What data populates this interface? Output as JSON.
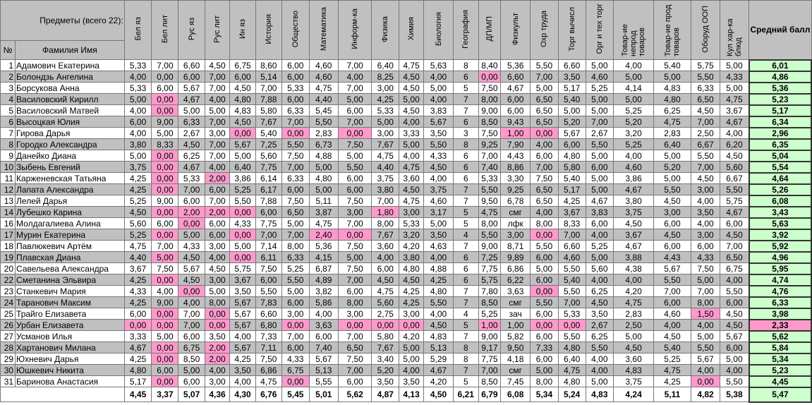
{
  "header": {
    "subjects_label": "Предметы (всего 22):",
    "num_label": "№",
    "fio_label": "Фамилия Имя",
    "avg_label": "Средний балл",
    "subjects": [
      "Бел яз",
      "Бел лит",
      "Рус яз",
      "Рус лит",
      "Ин яз",
      "История",
      "Общество",
      "Математика",
      "Информ-ка",
      "Физика",
      "Химия",
      "Биология",
      "География",
      "ДП/МП",
      "Физкульт",
      "Охр труда",
      "Торг вычисл",
      "Орг и тех торг",
      "Товар-ие непрод товаров",
      "Товар-ие прод товаров",
      "Оборуд ООП",
      "Кул хар-ка блюд"
    ]
  },
  "rows": [
    {
      "n": "1",
      "name": "Адамович Екатерина",
      "v": [
        "5,33",
        "7,00",
        "6,60",
        "4,50",
        "6,75",
        "8,60",
        "6,00",
        "4,60",
        "7,00",
        "6,40",
        "4,75",
        "5,63",
        "8",
        "8,40",
        "5,36",
        "5,50",
        "6,60",
        "5,00",
        "4,00",
        "5,40",
        "5,75",
        "5,00"
      ],
      "avg": "6,01"
    },
    {
      "n": "2",
      "name": "Болондзь Ангелина",
      "v": [
        "4,00",
        "0,00",
        "6,00",
        "7,00",
        "6,00",
        "5,14",
        "6,00",
        "4,60",
        "4,00",
        "8,25",
        "4,50",
        "4,00",
        "6",
        "0,00",
        "6,60",
        "7,00",
        "3,50",
        "4,60",
        "5,00",
        "5,00",
        "5,50",
        "4,33"
      ],
      "avg": "4,86"
    },
    {
      "n": "3",
      "name": "Борсукова Анна",
      "v": [
        "5,33",
        "6,00",
        "5,67",
        "7,00",
        "4,50",
        "7,00",
        "5,33",
        "4,75",
        "7,00",
        "3,00",
        "4,50",
        "5,00",
        "5",
        "7,50",
        "4,67",
        "5,00",
        "5,17",
        "5,25",
        "4,14",
        "4,83",
        "6,33",
        "5,00"
      ],
      "avg": "5,36"
    },
    {
      "n": "4",
      "name": "Василовский Кирилл",
      "v": [
        "5,00",
        "0,00",
        "4,67",
        "4,00",
        "4,80",
        "7,88",
        "6,00",
        "4,40",
        "5,00",
        "4,25",
        "5,00",
        "4,00",
        "7",
        "8,00",
        "6,00",
        "6,50",
        "5,40",
        "5,00",
        "5,00",
        "4,80",
        "6,50",
        "4,75"
      ],
      "avg": "5,23"
    },
    {
      "n": "5",
      "name": "Василовский Матвей",
      "v": [
        "4,00",
        "0,00",
        "5,00",
        "5,00",
        "4,83",
        "5,80",
        "6,33",
        "5,45",
        "6,00",
        "5,33",
        "4,50",
        "3,83",
        "7",
        "9,00",
        "6,00",
        "6,50",
        "5,00",
        "5,00",
        "5,25",
        "6,25",
        "4,50",
        "3,67"
      ],
      "avg": "5,17"
    },
    {
      "n": "6",
      "name": "Высоцкая Юлия",
      "v": [
        "6,00",
        "9,00",
        "6,33",
        "7,00",
        "4,50",
        "7,67",
        "7,00",
        "5,50",
        "7,00",
        "5,00",
        "4,00",
        "5,67",
        "6",
        "8,50",
        "9,43",
        "6,50",
        "5,20",
        "7,00",
        "5,20",
        "4,75",
        "7,00",
        "4,67"
      ],
      "avg": "6,34"
    },
    {
      "n": "7",
      "name": "Гирова Дарья",
      "v": [
        "4,00",
        "5,00",
        "2,67",
        "3,00",
        "0,00",
        "5,40",
        "0,00",
        "2,83",
        "0,00",
        "3,00",
        "3,33",
        "3,50",
        "3",
        "7,50",
        "1,00",
        "0,00",
        "5,67",
        "2,67",
        "3,20",
        "2,83",
        "2,50",
        "4,00"
      ],
      "avg": "2,96"
    },
    {
      "n": "8",
      "name": "Городко Александра",
      "v": [
        "3,80",
        "8,33",
        "4,50",
        "7,00",
        "5,67",
        "7,25",
        "5,50",
        "6,73",
        "7,50",
        "7,67",
        "5,00",
        "5,50",
        "8",
        "9,25",
        "7,90",
        "4,00",
        "6,00",
        "5,50",
        "5,25",
        "6,40",
        "6,67",
        "6,20"
      ],
      "avg": "6,35"
    },
    {
      "n": "9",
      "name": "Данейко Диана",
      "v": [
        "5,00",
        "0,00",
        "6,25",
        "7,00",
        "5,00",
        "5,60",
        "7,50",
        "4,88",
        "5,00",
        "4,75",
        "4,00",
        "4,33",
        "6",
        "7,00",
        "4,43",
        "6,00",
        "4,80",
        "5,00",
        "4,00",
        "5,00",
        "5,50",
        "4,50"
      ],
      "avg": "5,04"
    },
    {
      "n": "10",
      "name": "Зыбень Евгений",
      "v": [
        "3,75",
        "0,00",
        "4,67",
        "4,00",
        "6,40",
        "7,75",
        "7,00",
        "5,00",
        "5,50",
        "4,40",
        "4,75",
        "4,50",
        "6",
        "7,40",
        "8,86",
        "7,00",
        "5,80",
        "6,00",
        "4,60",
        "5,20",
        "7,00",
        "5,60"
      ],
      "avg": "5,54"
    },
    {
      "n": "11",
      "name": "Карженевская Татьяна",
      "v": [
        "4,25",
        "0,00",
        "5,33",
        "2,00",
        "3,86",
        "6,14",
        "6,33",
        "4,80",
        "6,00",
        "3,75",
        "3,60",
        "4,00",
        "6",
        "5,33",
        "3,30",
        "7,50",
        "5,40",
        "5,00",
        "3,86",
        "5,00",
        "4,50",
        "6,67"
      ],
      "avg": "4,64"
    },
    {
      "n": "12",
      "name": "Лапата Александра",
      "v": [
        "4,25",
        "0,00",
        "7,00",
        "6,00",
        "5,25",
        "6,17",
        "6,00",
        "5,00",
        "6,00",
        "3,80",
        "4,50",
        "3,75",
        "7",
        "5,50",
        "9,25",
        "6,50",
        "5,17",
        "5,00",
        "4,67",
        "5,50",
        "3,00",
        "5,50"
      ],
      "avg": "5,26"
    },
    {
      "n": "13",
      "name": "Лелей Дарья",
      "v": [
        "5,25",
        "9,00",
        "6,00",
        "7,00",
        "5,50",
        "7,88",
        "7,50",
        "5,11",
        "7,50",
        "7,00",
        "4,75",
        "4,60",
        "7",
        "9,50",
        "6,78",
        "6,50",
        "4,25",
        "4,67",
        "3,80",
        "4,50",
        "4,00",
        "5,75"
      ],
      "avg": "6,08"
    },
    {
      "n": "14",
      "name": "Лубешко Карина",
      "v": [
        "4,50",
        "0,00",
        "2,00",
        "2,00",
        "0,00",
        "6,00",
        "6,50",
        "3,87",
        "3,00",
        "1,80",
        "3,00",
        "3,17",
        "5",
        "4,75",
        "смг",
        "4,00",
        "3,67",
        "3,83",
        "3,75",
        "3,00",
        "3,50",
        "4,67"
      ],
      "avg": "3,43"
    },
    {
      "n": "16",
      "name": "Молдагалиева Алина",
      "v": [
        "5,60",
        "6,00",
        "0,00",
        "6,00",
        "4,33",
        "7,75",
        "5,00",
        "4,75",
        "7,00",
        "8,00",
        "5,33",
        "5,00",
        "5",
        "8,00",
        "лфк",
        "8,00",
        "8,33",
        "6,00",
        "4,50",
        "6,00",
        "4,00",
        "6,00"
      ],
      "avg": "5,63"
    },
    {
      "n": "17",
      "name": "Мурин Екатерина",
      "v": [
        "5,25",
        "0,00",
        "5,00",
        "6,00",
        "0,00",
        "7,00",
        "7,00",
        "2,40",
        "0,00",
        "7,67",
        "3,20",
        "3,50",
        "4",
        "5,50",
        "3,00",
        "0,00",
        "7,00",
        "4,00",
        "3,67",
        "4,50",
        "3,00",
        "4,50"
      ],
      "avg": "3,92"
    },
    {
      "n": "18",
      "name": "Павлюкевич Артём",
      "v": [
        "4,75",
        "7,00",
        "4,33",
        "3,00",
        "5,00",
        "7,14",
        "8,00",
        "5,36",
        "7,50",
        "3,60",
        "4,20",
        "4,63",
        "7",
        "9,00",
        "8,71",
        "5,50",
        "6,60",
        "5,25",
        "4,67",
        "6,00",
        "6,00",
        "7,00"
      ],
      "avg": "5,92"
    },
    {
      "n": "19",
      "name": "Плавская Диана",
      "v": [
        "4,40",
        "5,00",
        "4,50",
        "4,00",
        "0,00",
        "6,11",
        "6,33",
        "4,15",
        "5,00",
        "4,00",
        "3,80",
        "4,00",
        "6",
        "7,25",
        "9,89",
        "6,00",
        "4,60",
        "5,00",
        "3,88",
        "4,43",
        "4,33",
        "6,50"
      ],
      "avg": "4,96"
    },
    {
      "n": "20",
      "name": "Савельева  Александра",
      "v": [
        "3,67",
        "7,50",
        "5,67",
        "4,50",
        "5,75",
        "7,50",
        "5,25",
        "6,87",
        "7,50",
        "6,00",
        "4,80",
        "4,88",
        "6",
        "7,75",
        "6,86",
        "5,00",
        "5,50",
        "5,60",
        "4,38",
        "5,67",
        "7,50",
        "6,75"
      ],
      "avg": "5,95"
    },
    {
      "n": "22",
      "name": "Сметанина Эльвира",
      "v": [
        "4,25",
        "0,00",
        "4,50",
        "3,00",
        "3,67",
        "6,00",
        "5,50",
        "4,89",
        "7,00",
        "4,50",
        "4,50",
        "4,25",
        "6",
        "5,75",
        "6,22",
        "6,00",
        "5,40",
        "4,00",
        "4,00",
        "5,50",
        "5,00",
        "4,00"
      ],
      "avg": "4,74"
    },
    {
      "n": "23",
      "name": "Станкевич Мария",
      "v": [
        "4,33",
        "4,00",
        "0,00",
        "5,00",
        "3,50",
        "5,50",
        "5,00",
        "3,82",
        "6,00",
        "4,75",
        "4,25",
        "4,80",
        "7",
        "7,80",
        "3,63",
        "0,00",
        "5,50",
        "6,25",
        "4,20",
        "7,00",
        "7,00",
        "5,50"
      ],
      "avg": "4,76"
    },
    {
      "n": "24",
      "name": "Таранович Максим",
      "v": [
        "4,25",
        "9,00",
        "4,00",
        "8,00",
        "5,67",
        "7,83",
        "6,00",
        "5,86",
        "8,00",
        "5,60",
        "4,25",
        "5,50",
        "7",
        "8,50",
        "смг",
        "5,50",
        "7,00",
        "4,50",
        "4,75",
        "6,00",
        "8,00",
        "6,00"
      ],
      "avg": "6,33"
    },
    {
      "n": "25",
      "name": "Трайго Елизавета",
      "v": [
        "6,00",
        "0,00",
        "7,00",
        "0,00",
        "5,67",
        "6,60",
        "3,00",
        "4,00",
        "3,00",
        "2,75",
        "3,00",
        "4,00",
        "4",
        "5,25",
        "зач",
        "6,00",
        "5,33",
        "3,50",
        "2,83",
        "4,60",
        "1,50",
        "4,50"
      ],
      "avg": "3,98"
    },
    {
      "n": "26",
      "name": "Урбан Елизавета",
      "v": [
        "0,00",
        "0,00",
        "7,00",
        "0,00",
        "5,67",
        "6,80",
        "0,00",
        "3,63",
        "0,00",
        "0,00",
        "0,00",
        "4,50",
        "5",
        "1,00",
        "1,00",
        "0,00",
        "0,00",
        "2,67",
        "2,50",
        "4,00",
        "4,00",
        "4,50"
      ],
      "avg": "2,33"
    },
    {
      "n": "27",
      "name": "Усманов Илья",
      "v": [
        "3,33",
        "5,00",
        "6,00",
        "3,50",
        "4,00",
        "7,33",
        "7,00",
        "6,00",
        "7,00",
        "5,80",
        "4,20",
        "4,83",
        "7",
        "9,00",
        "5,82",
        "6,00",
        "5,50",
        "6,25",
        "5,00",
        "4,50",
        "5,00",
        "5,67"
      ],
      "avg": "5,62"
    },
    {
      "n": "28",
      "name": "Хартанович Милана",
      "v": [
        "4,67",
        "0,00",
        "6,75",
        "2,00",
        "5,67",
        "7,11",
        "6,00",
        "7,40",
        "6,50",
        "7,67",
        "5,00",
        "5,13",
        "8",
        "9,17",
        "9,50",
        "7,33",
        "4,80",
        "5,50",
        "4,50",
        "5,40",
        "5,50",
        "6,00"
      ],
      "avg": "5,84"
    },
    {
      "n": "29",
      "name": "Юхневич Дарья",
      "v": [
        "4,25",
        "0,00",
        "8,50",
        "2,00",
        "4,25",
        "7,50",
        "4,33",
        "5,67",
        "7,50",
        "3,40",
        "5,00",
        "5,29",
        "8",
        "7,75",
        "4,18",
        "6,00",
        "6,40",
        "4,00",
        "3,60",
        "5,25",
        "5,67",
        "5,00"
      ],
      "avg": "5,34"
    },
    {
      "n": "30",
      "name": "Юшкевич Никита",
      "v": [
        "4,80",
        "6,00",
        "5,00",
        "4,00",
        "3,50",
        "6,86",
        "6,75",
        "5,13",
        "7,00",
        "5,20",
        "4,00",
        "4,67",
        "7",
        "7,00",
        "смг",
        "5,00",
        "4,75",
        "4,00",
        "4,83",
        "4,75",
        "4,00",
        "4,00"
      ],
      "avg": "5,23"
    },
    {
      "n": "31",
      "name": "Баринова Анастасия",
      "v": [
        "5,17",
        "0,00",
        "6,00",
        "3,00",
        "4,00",
        "4,75",
        "0,00",
        "5,55",
        "6,00",
        "3,50",
        "3,50",
        "4,20",
        "5",
        "8,50",
        "7,45",
        "8,00",
        "4,80",
        "5,00",
        "3,75",
        "4,25",
        "0,00",
        "5,50"
      ],
      "avg": "4,45"
    }
  ],
  "pink_cells": [
    [
      2,
      13
    ],
    [
      4,
      1
    ],
    [
      5,
      1
    ],
    [
      7,
      4
    ],
    [
      7,
      6
    ],
    [
      7,
      8
    ],
    [
      7,
      14
    ],
    [
      7,
      15
    ],
    [
      9,
      1
    ],
    [
      10,
      1
    ],
    [
      11,
      1
    ],
    [
      11,
      3
    ],
    [
      12,
      1
    ],
    [
      14,
      1
    ],
    [
      14,
      2
    ],
    [
      14,
      3
    ],
    [
      14,
      4
    ],
    [
      14,
      9
    ],
    [
      16,
      2
    ],
    [
      17,
      1
    ],
    [
      17,
      4
    ],
    [
      17,
      7
    ],
    [
      17,
      8
    ],
    [
      17,
      15
    ],
    [
      19,
      1
    ],
    [
      19,
      4
    ],
    [
      22,
      1
    ],
    [
      23,
      2
    ],
    [
      23,
      15
    ],
    [
      25,
      1
    ],
    [
      25,
      3
    ],
    [
      25,
      20
    ],
    [
      26,
      0
    ],
    [
      26,
      1
    ],
    [
      26,
      3
    ],
    [
      26,
      6
    ],
    [
      26,
      8
    ],
    [
      26,
      9
    ],
    [
      26,
      10
    ],
    [
      26,
      13
    ],
    [
      26,
      15
    ],
    [
      26,
      16
    ],
    [
      28,
      1
    ],
    [
      28,
      3
    ],
    [
      29,
      1
    ],
    [
      29,
      3
    ],
    [
      31,
      1
    ],
    [
      31,
      6
    ],
    [
      31,
      20
    ]
  ],
  "green_avg_rows": [
    "1",
    "3",
    "6",
    "8",
    "10",
    "13",
    "16",
    "18",
    "20",
    "24",
    "27",
    "28"
  ],
  "pink_avg_rows": [
    "26"
  ],
  "footer": {
    "values": [
      "4,45",
      "3,37",
      "5,07",
      "4,36",
      "4,30",
      "6,76",
      "5,45",
      "5,01",
      "5,62",
      "4,87",
      "4,13",
      "4,50",
      "6,21",
      "6,79",
      "6,08",
      "5,34",
      "5,24",
      "4,83",
      "4,24",
      "5,11",
      "4,82",
      "5,38"
    ],
    "avg": "5,47"
  },
  "colors": {
    "header_bg": "#c0c0c0",
    "pink": "#ff99cc",
    "green": "#ccffcc",
    "gray_row": "#c0c0c0"
  }
}
